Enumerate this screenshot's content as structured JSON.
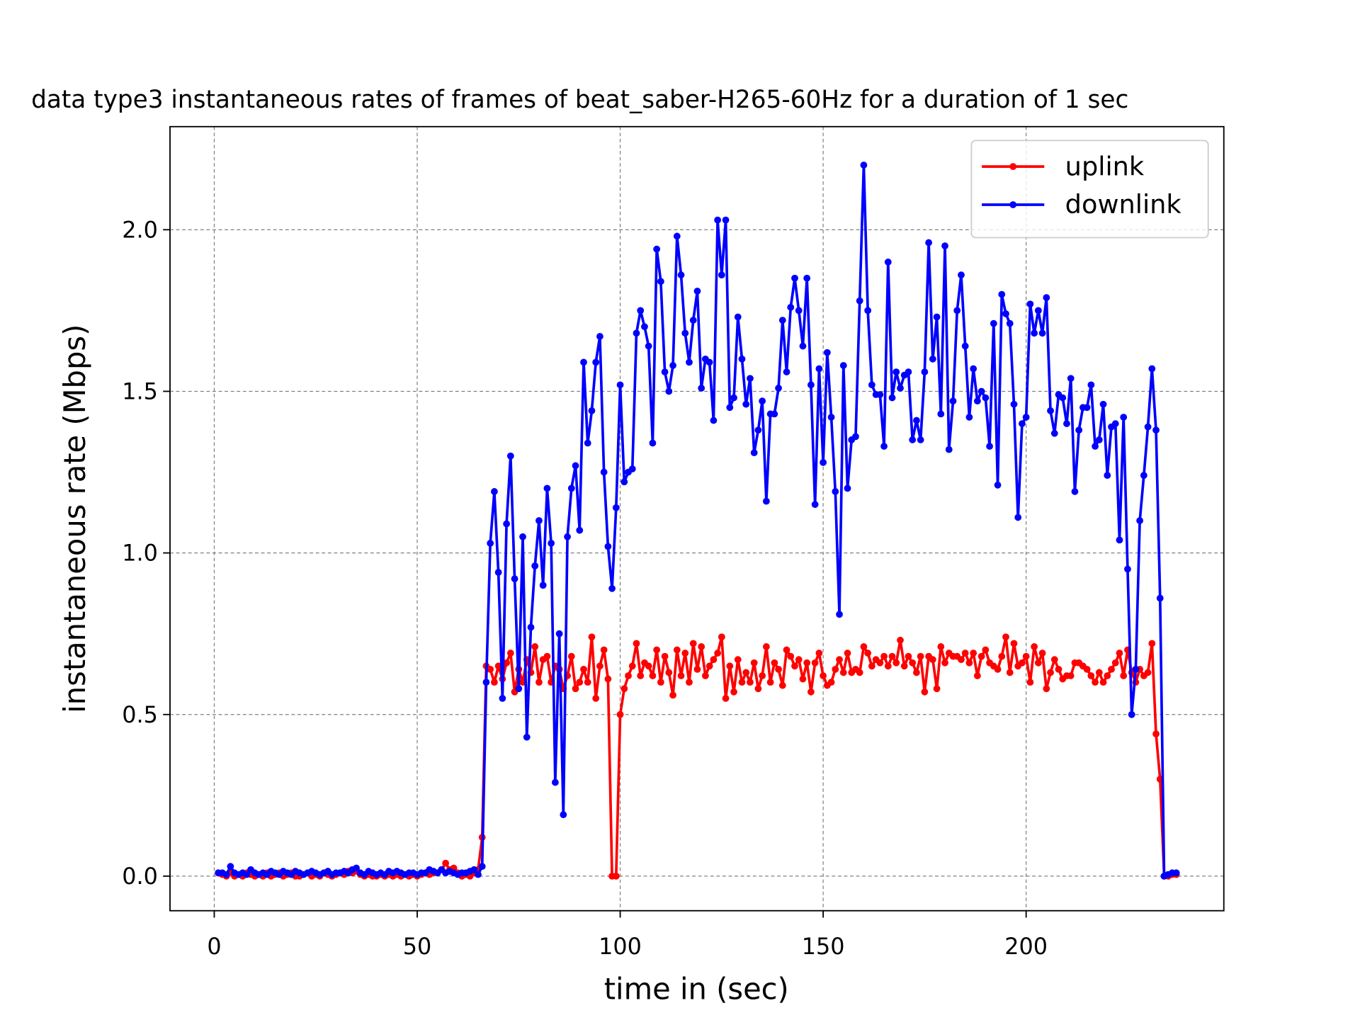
{
  "chart_data": {
    "type": "line",
    "title": "data type3 instantaneous rates of frames of beat_saber-H265-60Hz for a duration of 1 sec",
    "xlabel": "time in (sec)",
    "ylabel": "instantaneous rate (Mbps)",
    "xlim": [
      -10.9,
      248.7
    ],
    "ylim": [
      -0.107,
      2.319
    ],
    "xticks": [
      0,
      50,
      100,
      150,
      200
    ],
    "yticks": [
      {
        "value": 0,
        "label": "0.0"
      },
      {
        "value": 0.5,
        "label": "0.5"
      },
      {
        "value": 1,
        "label": "1.0"
      },
      {
        "value": 1.5,
        "label": "1.5"
      },
      {
        "value": 2,
        "label": "2.0"
      }
    ],
    "grid": true,
    "legend": "upper right",
    "x": [
      1,
      2,
      3,
      4,
      5,
      6,
      7,
      8,
      9,
      10,
      11,
      12,
      13,
      14,
      15,
      16,
      17,
      18,
      19,
      20,
      21,
      22,
      23,
      24,
      25,
      26,
      27,
      28,
      29,
      30,
      31,
      32,
      33,
      34,
      35,
      36,
      37,
      38,
      39,
      40,
      41,
      42,
      43,
      44,
      45,
      46,
      47,
      48,
      49,
      50,
      51,
      52,
      53,
      54,
      55,
      56,
      57,
      58,
      59,
      60,
      61,
      62,
      63,
      64,
      65,
      66,
      67,
      68,
      69,
      70,
      71,
      72,
      73,
      74,
      75,
      76,
      77,
      78,
      79,
      80,
      81,
      82,
      83,
      84,
      85,
      86,
      87,
      88,
      89,
      90,
      91,
      92,
      93,
      94,
      95,
      96,
      97,
      98,
      99,
      100,
      101,
      102,
      103,
      104,
      105,
      106,
      107,
      108,
      109,
      110,
      111,
      112,
      113,
      114,
      115,
      116,
      117,
      118,
      119,
      120,
      121,
      122,
      123,
      124,
      125,
      126,
      127,
      128,
      129,
      130,
      131,
      132,
      133,
      134,
      135,
      136,
      137,
      138,
      139,
      140,
      141,
      142,
      143,
      144,
      145,
      146,
      147,
      148,
      149,
      150,
      151,
      152,
      153,
      154,
      155,
      156,
      157,
      158,
      159,
      160,
      161,
      162,
      163,
      164,
      165,
      166,
      167,
      168,
      169,
      170,
      171,
      172,
      173,
      174,
      175,
      176,
      177,
      178,
      179,
      180,
      181,
      182,
      183,
      184,
      185,
      186,
      187,
      188,
      189,
      190,
      191,
      192,
      193,
      194,
      195,
      196,
      197,
      198,
      199,
      200,
      201,
      202,
      203,
      204,
      205,
      206,
      207,
      208,
      209,
      210,
      211,
      212,
      213,
      214,
      215,
      216,
      217,
      218,
      219,
      220,
      221,
      222,
      223,
      224,
      225,
      226,
      227,
      228,
      229,
      230,
      231,
      232,
      233,
      234,
      235,
      236,
      237
    ],
    "series": [
      {
        "name": "uplink",
        "color": "#ff0000",
        "values": [
          0.01,
          0.005,
          0.0,
          0.01,
          0.0,
          0.005,
          0.0,
          0.01,
          0.005,
          0.0,
          0.005,
          0.0,
          0.01,
          0.0,
          0.005,
          0.01,
          0.0,
          0.005,
          0.01,
          0.0,
          0.0,
          0.005,
          0.01,
          0.0,
          0.005,
          0.0,
          0.01,
          0.005,
          0.0,
          0.005,
          0.01,
          0.005,
          0.015,
          0.01,
          0.015,
          0.005,
          0.0,
          0.005,
          0.0,
          0.0,
          0.005,
          0.0,
          0.005,
          0.0,
          0.005,
          0.0,
          0.005,
          0.0,
          0.005,
          0.0,
          0.005,
          0.01,
          0.005,
          0.01,
          0.01,
          0.02,
          0.04,
          0.02,
          0.025,
          0.01,
          0.0,
          0.005,
          0.0,
          0.01,
          0.02,
          0.12,
          0.65,
          0.64,
          0.6,
          0.65,
          0.61,
          0.66,
          0.69,
          0.57,
          0.64,
          0.6,
          0.67,
          0.63,
          0.71,
          0.6,
          0.67,
          0.68,
          0.6,
          0.65,
          0.64,
          0.58,
          0.62,
          0.68,
          0.58,
          0.6,
          0.64,
          0.6,
          0.74,
          0.55,
          0.65,
          0.7,
          0.61,
          0.0,
          0.0,
          0.5,
          0.58,
          0.62,
          0.65,
          0.72,
          0.62,
          0.66,
          0.65,
          0.62,
          0.7,
          0.6,
          0.68,
          0.63,
          0.56,
          0.7,
          0.62,
          0.69,
          0.6,
          0.72,
          0.64,
          0.71,
          0.62,
          0.65,
          0.67,
          0.69,
          0.74,
          0.55,
          0.65,
          0.57,
          0.67,
          0.6,
          0.63,
          0.6,
          0.66,
          0.58,
          0.62,
          0.71,
          0.6,
          0.66,
          0.64,
          0.59,
          0.7,
          0.68,
          0.65,
          0.67,
          0.61,
          0.66,
          0.57,
          0.66,
          0.69,
          0.62,
          0.59,
          0.6,
          0.64,
          0.67,
          0.63,
          0.69,
          0.63,
          0.64,
          0.63,
          0.71,
          0.69,
          0.65,
          0.67,
          0.66,
          0.68,
          0.65,
          0.68,
          0.66,
          0.73,
          0.65,
          0.68,
          0.66,
          0.63,
          0.68,
          0.57,
          0.68,
          0.67,
          0.58,
          0.71,
          0.66,
          0.69,
          0.68,
          0.68,
          0.67,
          0.69,
          0.66,
          0.69,
          0.62,
          0.68,
          0.7,
          0.66,
          0.65,
          0.64,
          0.68,
          0.74,
          0.63,
          0.72,
          0.65,
          0.66,
          0.68,
          0.6,
          0.71,
          0.66,
          0.69,
          0.58,
          0.63,
          0.67,
          0.64,
          0.61,
          0.62,
          0.62,
          0.66,
          0.66,
          0.65,
          0.64,
          0.62,
          0.6,
          0.63,
          0.6,
          0.62,
          0.64,
          0.66,
          0.69,
          0.62,
          0.7,
          0.63,
          0.6,
          0.64,
          0.62,
          0.63,
          0.72,
          0.44,
          0.3,
          0.0,
          0.0,
          0.005,
          0.005
        ]
      },
      {
        "name": "downlink",
        "color": "#0000ff",
        "values": [
          0.01,
          0.01,
          0.005,
          0.03,
          0.01,
          0.005,
          0.01,
          0.005,
          0.02,
          0.01,
          0.005,
          0.01,
          0.005,
          0.015,
          0.01,
          0.005,
          0.015,
          0.01,
          0.005,
          0.015,
          0.01,
          0.005,
          0.01,
          0.015,
          0.01,
          0.005,
          0.01,
          0.015,
          0.005,
          0.01,
          0.01,
          0.015,
          0.01,
          0.02,
          0.025,
          0.01,
          0.005,
          0.015,
          0.01,
          0.005,
          0.01,
          0.005,
          0.015,
          0.01,
          0.015,
          0.01,
          0.005,
          0.01,
          0.01,
          0.005,
          0.01,
          0.01,
          0.02,
          0.015,
          0.01,
          0.02,
          0.01,
          0.015,
          0.01,
          0.005,
          0.01,
          0.01,
          0.015,
          0.02,
          0.005,
          0.03,
          0.6,
          1.03,
          1.19,
          0.94,
          0.55,
          1.09,
          1.3,
          0.92,
          0.58,
          1.05,
          0.43,
          0.77,
          0.96,
          1.1,
          0.9,
          1.2,
          1.03,
          0.29,
          0.75,
          0.19,
          1.05,
          1.2,
          1.27,
          1.07,
          1.59,
          1.34,
          1.44,
          1.59,
          1.67,
          1.25,
          1.02,
          0.89,
          1.14,
          1.52,
          1.22,
          1.25,
          1.26,
          1.68,
          1.75,
          1.7,
          1.64,
          1.34,
          1.94,
          1.84,
          1.56,
          1.5,
          1.58,
          1.98,
          1.86,
          1.68,
          1.59,
          1.72,
          1.81,
          1.51,
          1.6,
          1.59,
          1.41,
          2.03,
          1.86,
          2.03,
          1.45,
          1.48,
          1.73,
          1.6,
          1.46,
          1.54,
          1.31,
          1.38,
          1.47,
          1.16,
          1.43,
          1.43,
          1.51,
          1.72,
          1.56,
          1.76,
          1.85,
          1.75,
          1.64,
          1.85,
          1.52,
          1.15,
          1.57,
          1.28,
          1.62,
          1.42,
          1.19,
          0.81,
          1.58,
          1.2,
          1.35,
          1.36,
          1.78,
          2.2,
          1.75,
          1.52,
          1.49,
          1.49,
          1.33,
          1.9,
          1.48,
          1.56,
          1.51,
          1.55,
          1.56,
          1.35,
          1.41,
          1.35,
          1.56,
          1.96,
          1.6,
          1.73,
          1.43,
          1.95,
          1.32,
          1.47,
          1.75,
          1.86,
          1.64,
          1.42,
          1.57,
          1.47,
          1.5,
          1.48,
          1.33,
          1.71,
          1.21,
          1.8,
          1.74,
          1.71,
          1.46,
          1.11,
          1.4,
          1.42,
          1.77,
          1.68,
          1.75,
          1.68,
          1.79,
          1.44,
          1.37,
          1.49,
          1.48,
          1.4,
          1.54,
          1.19,
          1.38,
          1.45,
          1.45,
          1.52,
          1.33,
          1.35,
          1.46,
          1.24,
          1.39,
          1.4,
          1.04,
          1.42,
          0.95,
          0.5,
          0.64,
          1.1,
          1.24,
          1.39,
          1.57,
          1.38,
          0.86,
          0.0,
          0.005,
          0.01,
          0.01
        ]
      }
    ]
  }
}
